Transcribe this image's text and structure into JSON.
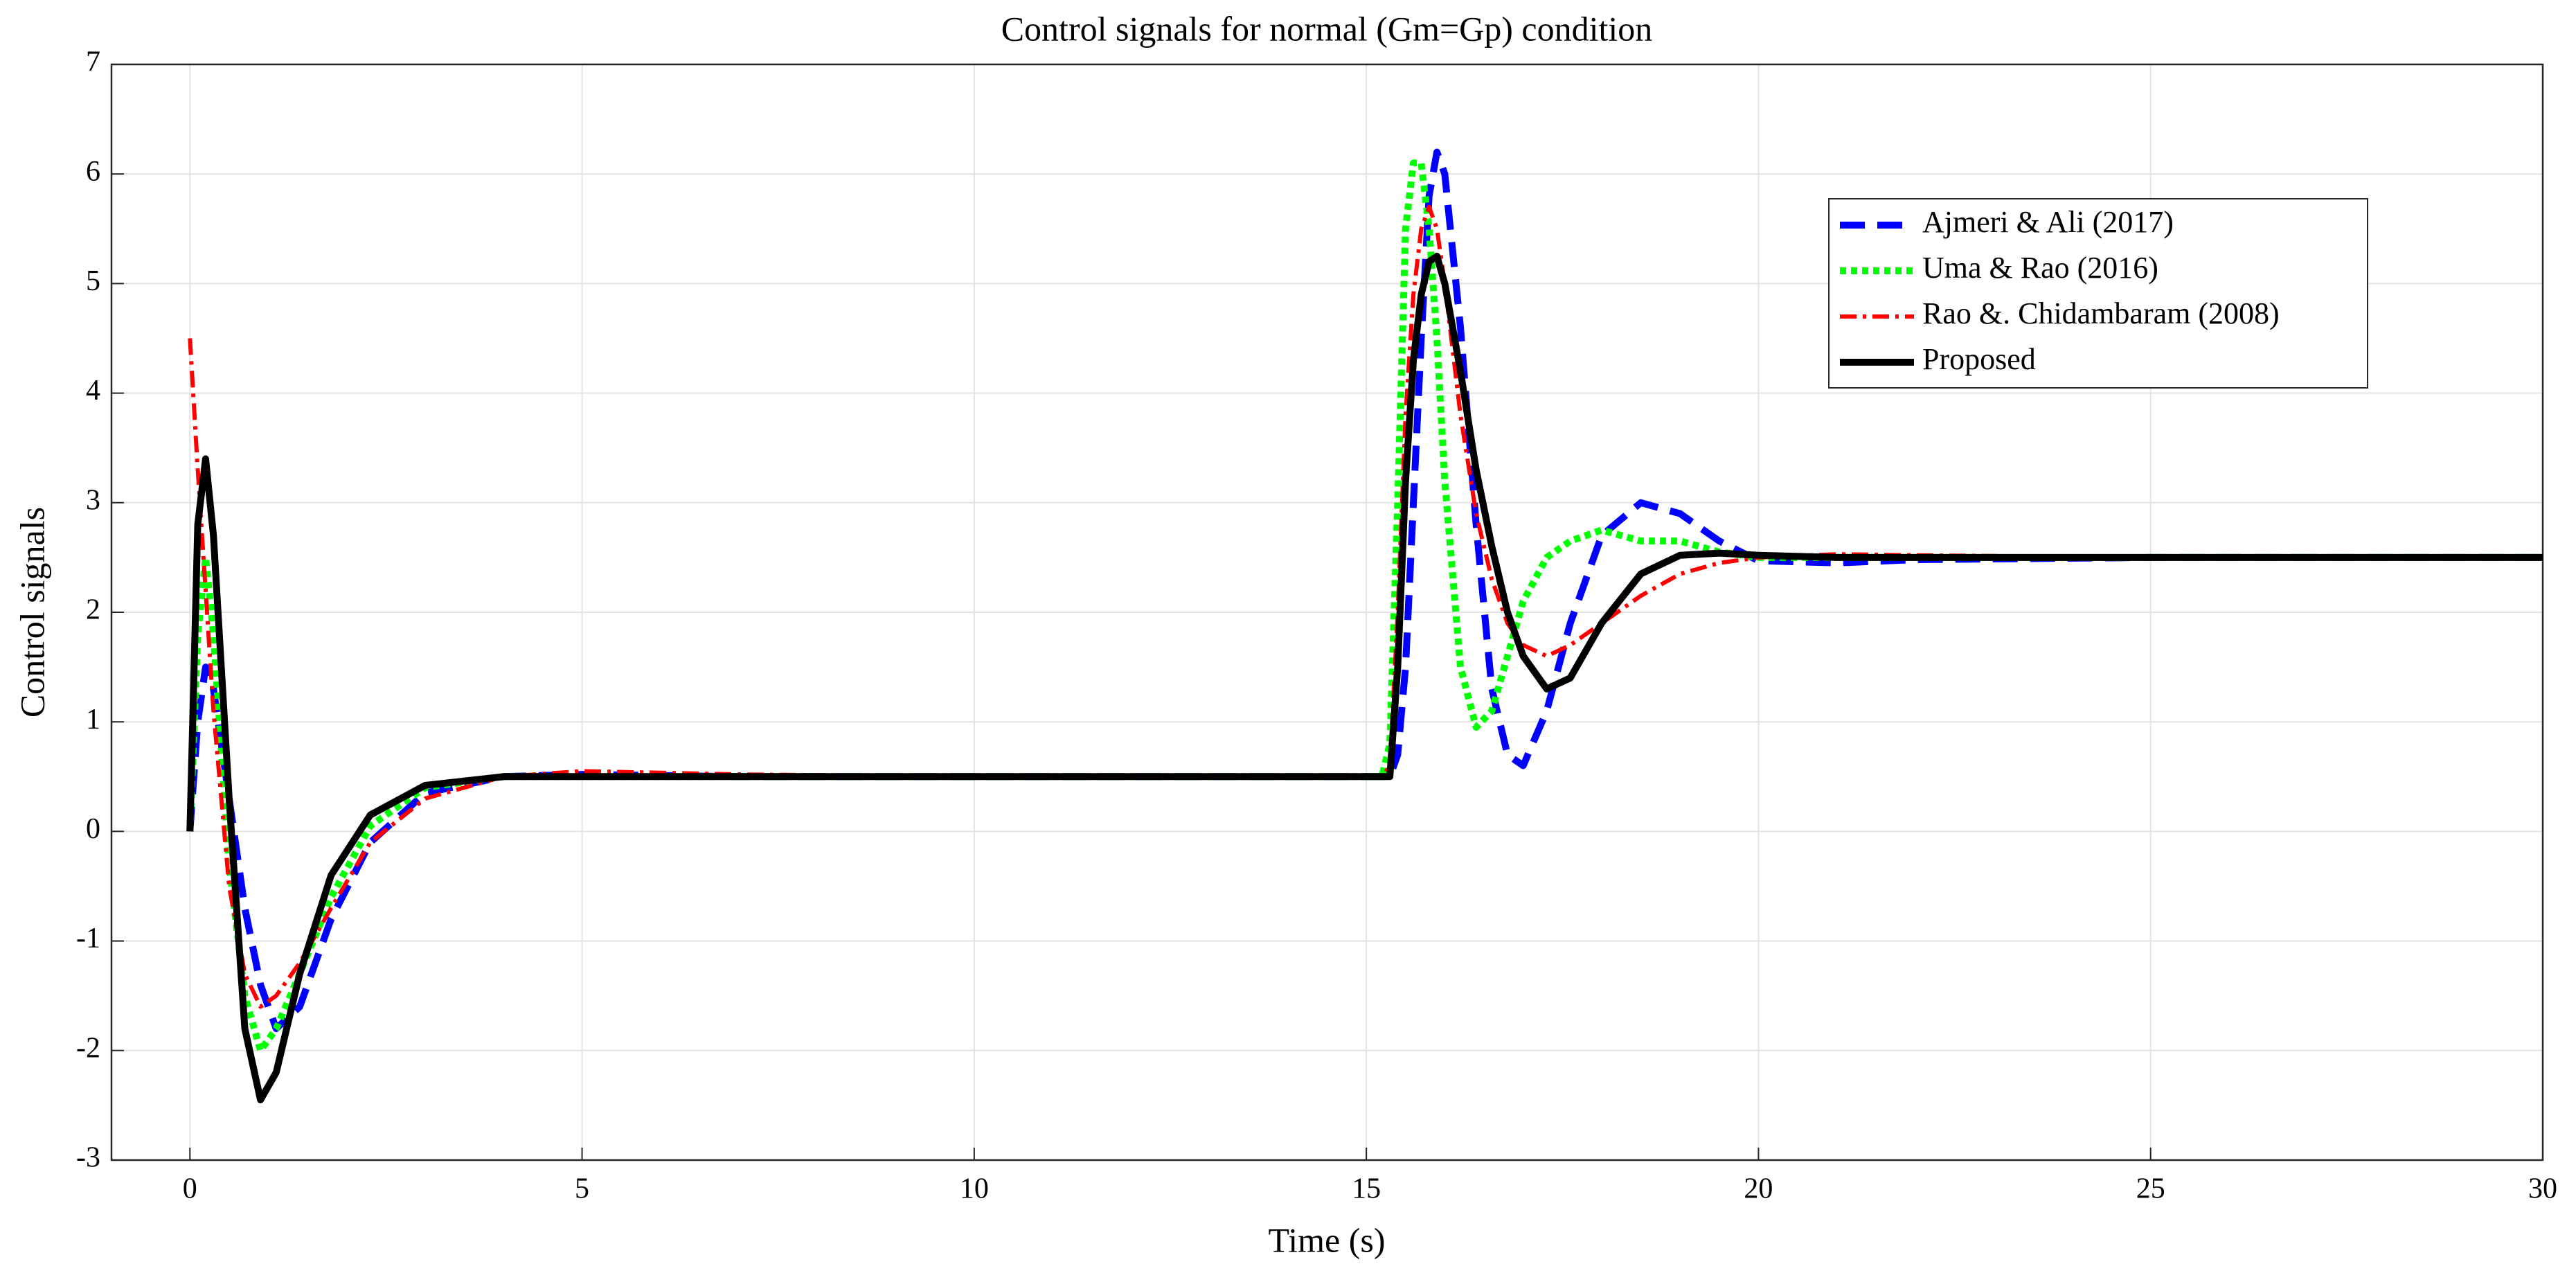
{
  "chart_data": {
    "type": "line",
    "title": "Control signals for normal (Gm=Gp) condition",
    "x_label": "Time (s)",
    "y_label": "Control signals",
    "xlim": [
      -1,
      30
    ],
    "ylim": [
      -3,
      7
    ],
    "xticks": [
      0,
      5,
      10,
      15,
      20,
      25,
      30
    ],
    "yticks": [
      -3,
      -2,
      -1,
      0,
      1,
      2,
      3,
      4,
      5,
      6,
      7
    ],
    "grid": true,
    "legend": "upper-right",
    "x": [
      0,
      0.1,
      0.2,
      0.3,
      0.5,
      0.7,
      0.9,
      1.1,
      1.4,
      1.8,
      2.3,
      3,
      4,
      5,
      7,
      10,
      15.2,
      15.3,
      15.4,
      15.5,
      15.6,
      15.7,
      15.8,
      15.9,
      16.0,
      16.2,
      16.4,
      16.6,
      16.8,
      17.0,
      17.3,
      17.6,
      18,
      18.5,
      19,
      19.5,
      20,
      21,
      22,
      25,
      30
    ],
    "series": [
      {
        "name": "Ajmeri & Ali (2017)",
        "color": "#0000ff",
        "dash": "dashed",
        "values": [
          0,
          1.0,
          1.5,
          1.3,
          0.3,
          -0.7,
          -1.4,
          -1.8,
          -1.6,
          -0.8,
          -0.1,
          0.35,
          0.5,
          0.52,
          0.5,
          0.5,
          0.5,
          0.5,
          0.7,
          1.5,
          3.0,
          4.5,
          5.8,
          6.2,
          6.0,
          4.6,
          2.8,
          1.3,
          0.7,
          0.6,
          1.1,
          1.9,
          2.7,
          3.0,
          2.9,
          2.65,
          2.47,
          2.45,
          2.48,
          2.5,
          2.5
        ]
      },
      {
        "name": "Uma & Rao (2016)",
        "color": "#00ff00",
        "dash": "dotted",
        "values": [
          0,
          1.8,
          2.5,
          1.8,
          -0.3,
          -1.5,
          -2.0,
          -1.8,
          -1.3,
          -0.6,
          0.05,
          0.4,
          0.5,
          0.5,
          0.5,
          0.5,
          0.5,
          0.8,
          3.0,
          5.5,
          6.1,
          6.1,
          5.5,
          4.5,
          3.2,
          1.5,
          0.95,
          1.1,
          1.6,
          2.1,
          2.5,
          2.65,
          2.75,
          2.65,
          2.65,
          2.55,
          2.5,
          2.5,
          2.5,
          2.5,
          2.5
        ]
      },
      {
        "name": "Rao &. Chidambaram (2008)",
        "color": "#ff0000",
        "dash": "dashdot",
        "values": [
          4.5,
          3.3,
          2.2,
          1.1,
          -0.5,
          -1.3,
          -1.6,
          -1.5,
          -1.2,
          -0.7,
          -0.1,
          0.3,
          0.5,
          0.55,
          0.52,
          0.5,
          0.5,
          0.6,
          2.0,
          3.8,
          4.9,
          5.5,
          5.7,
          5.5,
          5.0,
          3.8,
          2.9,
          2.3,
          1.9,
          1.7,
          1.6,
          1.7,
          1.9,
          2.15,
          2.35,
          2.45,
          2.5,
          2.53,
          2.52,
          2.5,
          2.5
        ]
      },
      {
        "name": "Proposed",
        "color": "#000000",
        "dash": "solid",
        "values": [
          0,
          2.8,
          3.4,
          2.7,
          0.3,
          -1.8,
          -2.45,
          -2.2,
          -1.3,
          -0.4,
          0.15,
          0.42,
          0.5,
          0.5,
          0.5,
          0.5,
          0.5,
          0.5,
          1.5,
          3.2,
          4.3,
          4.9,
          5.2,
          5.25,
          5.0,
          4.2,
          3.3,
          2.6,
          2.0,
          1.6,
          1.3,
          1.4,
          1.9,
          2.35,
          2.52,
          2.54,
          2.52,
          2.5,
          2.5,
          2.5,
          2.5
        ]
      }
    ]
  }
}
